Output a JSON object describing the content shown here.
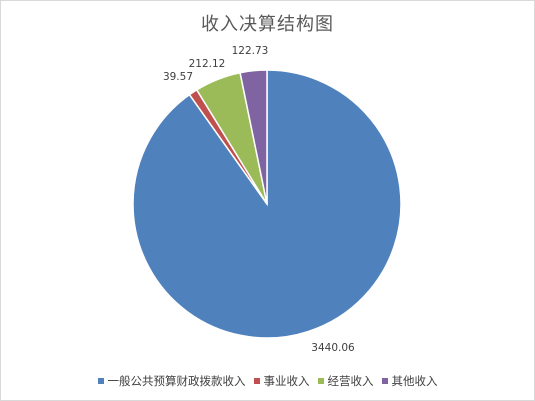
{
  "chart_data": {
    "type": "pie",
    "title": "收入决算结构图",
    "categories": [
      "一般公共预算财政拨款收入",
      "事业收入",
      "经营收入",
      "其他收入"
    ],
    "values": [
      3440.06,
      39.57,
      212.12,
      122.73
    ],
    "value_labels": [
      "3440.06",
      "39.57",
      "212.12",
      "122.73"
    ],
    "colors": [
      "#4f81bd",
      "#c0504d",
      "#9bbb59",
      "#8064a2"
    ],
    "start_angle": "12 o'clock",
    "direction": "clockwise",
    "legend": "bottom"
  }
}
